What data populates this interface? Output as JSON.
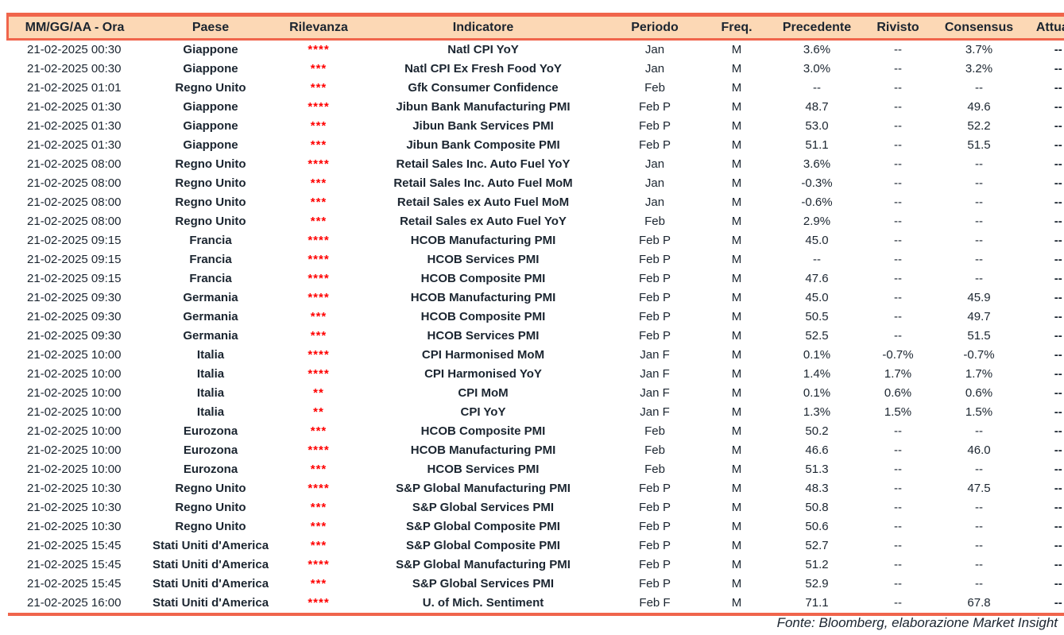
{
  "table": {
    "columns": [
      {
        "key": "datetime",
        "label": "MM/GG/AA - Ora"
      },
      {
        "key": "country",
        "label": "Paese"
      },
      {
        "key": "relevance",
        "label": "Rilevanza"
      },
      {
        "key": "indicator",
        "label": "Indicatore"
      },
      {
        "key": "period",
        "label": "Periodo"
      },
      {
        "key": "freq",
        "label": "Freq."
      },
      {
        "key": "previous",
        "label": "Precedente"
      },
      {
        "key": "revised",
        "label": "Rivisto"
      },
      {
        "key": "consensus",
        "label": "Consensus"
      },
      {
        "key": "actual",
        "label": "Attuale"
      }
    ],
    "rows": [
      {
        "datetime": "21-02-2025 00:30",
        "country": "Giappone",
        "relevance": "****",
        "indicator": "Natl CPI YoY",
        "period": "Jan",
        "freq": "M",
        "previous": "3.6%",
        "revised": "--",
        "consensus": "3.7%",
        "actual": "--"
      },
      {
        "datetime": "21-02-2025 00:30",
        "country": "Giappone",
        "relevance": "***",
        "indicator": "Natl CPI Ex Fresh Food YoY",
        "period": "Jan",
        "freq": "M",
        "previous": "3.0%",
        "revised": "--",
        "consensus": "3.2%",
        "actual": "--"
      },
      {
        "datetime": "21-02-2025 01:01",
        "country": "Regno Unito",
        "relevance": "***",
        "indicator": "Gfk Consumer Confidence",
        "period": "Feb",
        "freq": "M",
        "previous": "--",
        "revised": "--",
        "consensus": "--",
        "actual": "--"
      },
      {
        "datetime": "21-02-2025 01:30",
        "country": "Giappone",
        "relevance": "****",
        "indicator": "Jibun Bank Manufacturing PMI",
        "period": "Feb P",
        "freq": "M",
        "previous": "48.7",
        "revised": "--",
        "consensus": "49.6",
        "actual": "--"
      },
      {
        "datetime": "21-02-2025 01:30",
        "country": "Giappone",
        "relevance": "***",
        "indicator": "Jibun Bank Services PMI",
        "period": "Feb P",
        "freq": "M",
        "previous": "53.0",
        "revised": "--",
        "consensus": "52.2",
        "actual": "--"
      },
      {
        "datetime": "21-02-2025 01:30",
        "country": "Giappone",
        "relevance": "***",
        "indicator": "Jibun Bank Composite PMI",
        "period": "Feb P",
        "freq": "M",
        "previous": "51.1",
        "revised": "--",
        "consensus": "51.5",
        "actual": "--"
      },
      {
        "datetime": "21-02-2025 08:00",
        "country": "Regno Unito",
        "relevance": "****",
        "indicator": "Retail Sales Inc. Auto Fuel YoY",
        "period": "Jan",
        "freq": "M",
        "previous": "3.6%",
        "revised": "--",
        "consensus": "--",
        "actual": "--"
      },
      {
        "datetime": "21-02-2025 08:00",
        "country": "Regno Unito",
        "relevance": "***",
        "indicator": "Retail Sales Inc. Auto Fuel MoM",
        "period": "Jan",
        "freq": "M",
        "previous": "-0.3%",
        "revised": "--",
        "consensus": "--",
        "actual": "--"
      },
      {
        "datetime": "21-02-2025 08:00",
        "country": "Regno Unito",
        "relevance": "***",
        "indicator": "Retail Sales ex Auto Fuel MoM",
        "period": "Jan",
        "freq": "M",
        "previous": "-0.6%",
        "revised": "--",
        "consensus": "--",
        "actual": "--"
      },
      {
        "datetime": "21-02-2025 08:00",
        "country": "Regno Unito",
        "relevance": "***",
        "indicator": "Retail Sales ex Auto Fuel YoY",
        "period": "Feb",
        "freq": "M",
        "previous": "2.9%",
        "revised": "--",
        "consensus": "--",
        "actual": "--"
      },
      {
        "datetime": "21-02-2025 09:15",
        "country": "Francia",
        "relevance": "****",
        "indicator": "HCOB Manufacturing PMI",
        "period": "Feb P",
        "freq": "M",
        "previous": "45.0",
        "revised": "--",
        "consensus": "--",
        "actual": "--"
      },
      {
        "datetime": "21-02-2025 09:15",
        "country": "Francia",
        "relevance": "****",
        "indicator": "HCOB Services PMI",
        "period": "Feb P",
        "freq": "M",
        "previous": "--",
        "revised": "--",
        "consensus": "--",
        "actual": "--"
      },
      {
        "datetime": "21-02-2025 09:15",
        "country": "Francia",
        "relevance": "****",
        "indicator": "HCOB Composite PMI",
        "period": "Feb P",
        "freq": "M",
        "previous": "47.6",
        "revised": "--",
        "consensus": "--",
        "actual": "--"
      },
      {
        "datetime": "21-02-2025 09:30",
        "country": "Germania",
        "relevance": "****",
        "indicator": "HCOB Manufacturing PMI",
        "period": "Feb P",
        "freq": "M",
        "previous": "45.0",
        "revised": "--",
        "consensus": "45.9",
        "actual": "--"
      },
      {
        "datetime": "21-02-2025 09:30",
        "country": "Germania",
        "relevance": "***",
        "indicator": "HCOB Composite PMI",
        "period": "Feb P",
        "freq": "M",
        "previous": "50.5",
        "revised": "--",
        "consensus": "49.7",
        "actual": "--"
      },
      {
        "datetime": "21-02-2025 09:30",
        "country": "Germania",
        "relevance": "***",
        "indicator": "HCOB Services PMI",
        "period": "Feb P",
        "freq": "M",
        "previous": "52.5",
        "revised": "--",
        "consensus": "51.5",
        "actual": "--"
      },
      {
        "datetime": "21-02-2025 10:00",
        "country": "Italia",
        "relevance": "****",
        "indicator": "CPI Harmonised MoM",
        "period": "Jan F",
        "freq": "M",
        "previous": "0.1%",
        "revised": "-0.7%",
        "consensus": "-0.7%",
        "actual": "--"
      },
      {
        "datetime": "21-02-2025 10:00",
        "country": "Italia",
        "relevance": "****",
        "indicator": "CPI Harmonised YoY",
        "period": "Jan F",
        "freq": "M",
        "previous": "1.4%",
        "revised": "1.7%",
        "consensus": "1.7%",
        "actual": "--"
      },
      {
        "datetime": "21-02-2025 10:00",
        "country": "Italia",
        "relevance": "**",
        "indicator": "CPI MoM",
        "period": "Jan F",
        "freq": "M",
        "previous": "0.1%",
        "revised": "0.6%",
        "consensus": "0.6%",
        "actual": "--"
      },
      {
        "datetime": "21-02-2025 10:00",
        "country": "Italia",
        "relevance": "**",
        "indicator": "CPI YoY",
        "period": "Jan F",
        "freq": "M",
        "previous": "1.3%",
        "revised": "1.5%",
        "consensus": "1.5%",
        "actual": "--"
      },
      {
        "datetime": "21-02-2025 10:00",
        "country": "Eurozona",
        "relevance": "***",
        "indicator": "HCOB Composite PMI",
        "period": "Feb",
        "freq": "M",
        "previous": "50.2",
        "revised": "--",
        "consensus": "--",
        "actual": "--"
      },
      {
        "datetime": "21-02-2025 10:00",
        "country": "Eurozona",
        "relevance": "****",
        "indicator": "HCOB Manufacturing PMI",
        "period": "Feb",
        "freq": "M",
        "previous": "46.6",
        "revised": "--",
        "consensus": "46.0",
        "actual": "--"
      },
      {
        "datetime": "21-02-2025 10:00",
        "country": "Eurozona",
        "relevance": "***",
        "indicator": "HCOB Services PMI",
        "period": "Feb",
        "freq": "M",
        "previous": "51.3",
        "revised": "--",
        "consensus": "--",
        "actual": "--"
      },
      {
        "datetime": "21-02-2025 10:30",
        "country": "Regno Unito",
        "relevance": "****",
        "indicator": "S&P Global Manufacturing PMI",
        "period": "Feb P",
        "freq": "M",
        "previous": "48.3",
        "revised": "--",
        "consensus": "47.5",
        "actual": "--"
      },
      {
        "datetime": "21-02-2025 10:30",
        "country": "Regno Unito",
        "relevance": "***",
        "indicator": "S&P Global Services PMI",
        "period": "Feb P",
        "freq": "M",
        "previous": "50.8",
        "revised": "--",
        "consensus": "--",
        "actual": "--"
      },
      {
        "datetime": "21-02-2025 10:30",
        "country": "Regno Unito",
        "relevance": "***",
        "indicator": "S&P Global Composite PMI",
        "period": "Feb P",
        "freq": "M",
        "previous": "50.6",
        "revised": "--",
        "consensus": "--",
        "actual": "--"
      },
      {
        "datetime": "21-02-2025 15:45",
        "country": "Stati Uniti d'America",
        "relevance": "***",
        "indicator": "S&P Global Composite PMI",
        "period": "Feb P",
        "freq": "M",
        "previous": "52.7",
        "revised": "--",
        "consensus": "--",
        "actual": "--"
      },
      {
        "datetime": "21-02-2025 15:45",
        "country": "Stati Uniti d'America",
        "relevance": "****",
        "indicator": "S&P Global Manufacturing PMI",
        "period": "Feb P",
        "freq": "M",
        "previous": "51.2",
        "revised": "--",
        "consensus": "--",
        "actual": "--"
      },
      {
        "datetime": "21-02-2025 15:45",
        "country": "Stati Uniti d'America",
        "relevance": "***",
        "indicator": "S&P Global Services PMI",
        "period": "Feb P",
        "freq": "M",
        "previous": "52.9",
        "revised": "--",
        "consensus": "--",
        "actual": "--"
      },
      {
        "datetime": "21-02-2025 16:00",
        "country": "Stati Uniti d'America",
        "relevance": "****",
        "indicator": "U. of Mich. Sentiment",
        "period": "Feb F",
        "freq": "M",
        "previous": "71.1",
        "revised": "--",
        "consensus": "67.8",
        "actual": "--"
      }
    ]
  },
  "footer": {
    "source": "Fonte: Bloomberg, elaborazione Market Insight"
  },
  "colors": {
    "accent_border": "#f0654c",
    "header_background": "#fcd8b5",
    "relevance_stars": "#ff0000",
    "text": "#1b2530"
  }
}
